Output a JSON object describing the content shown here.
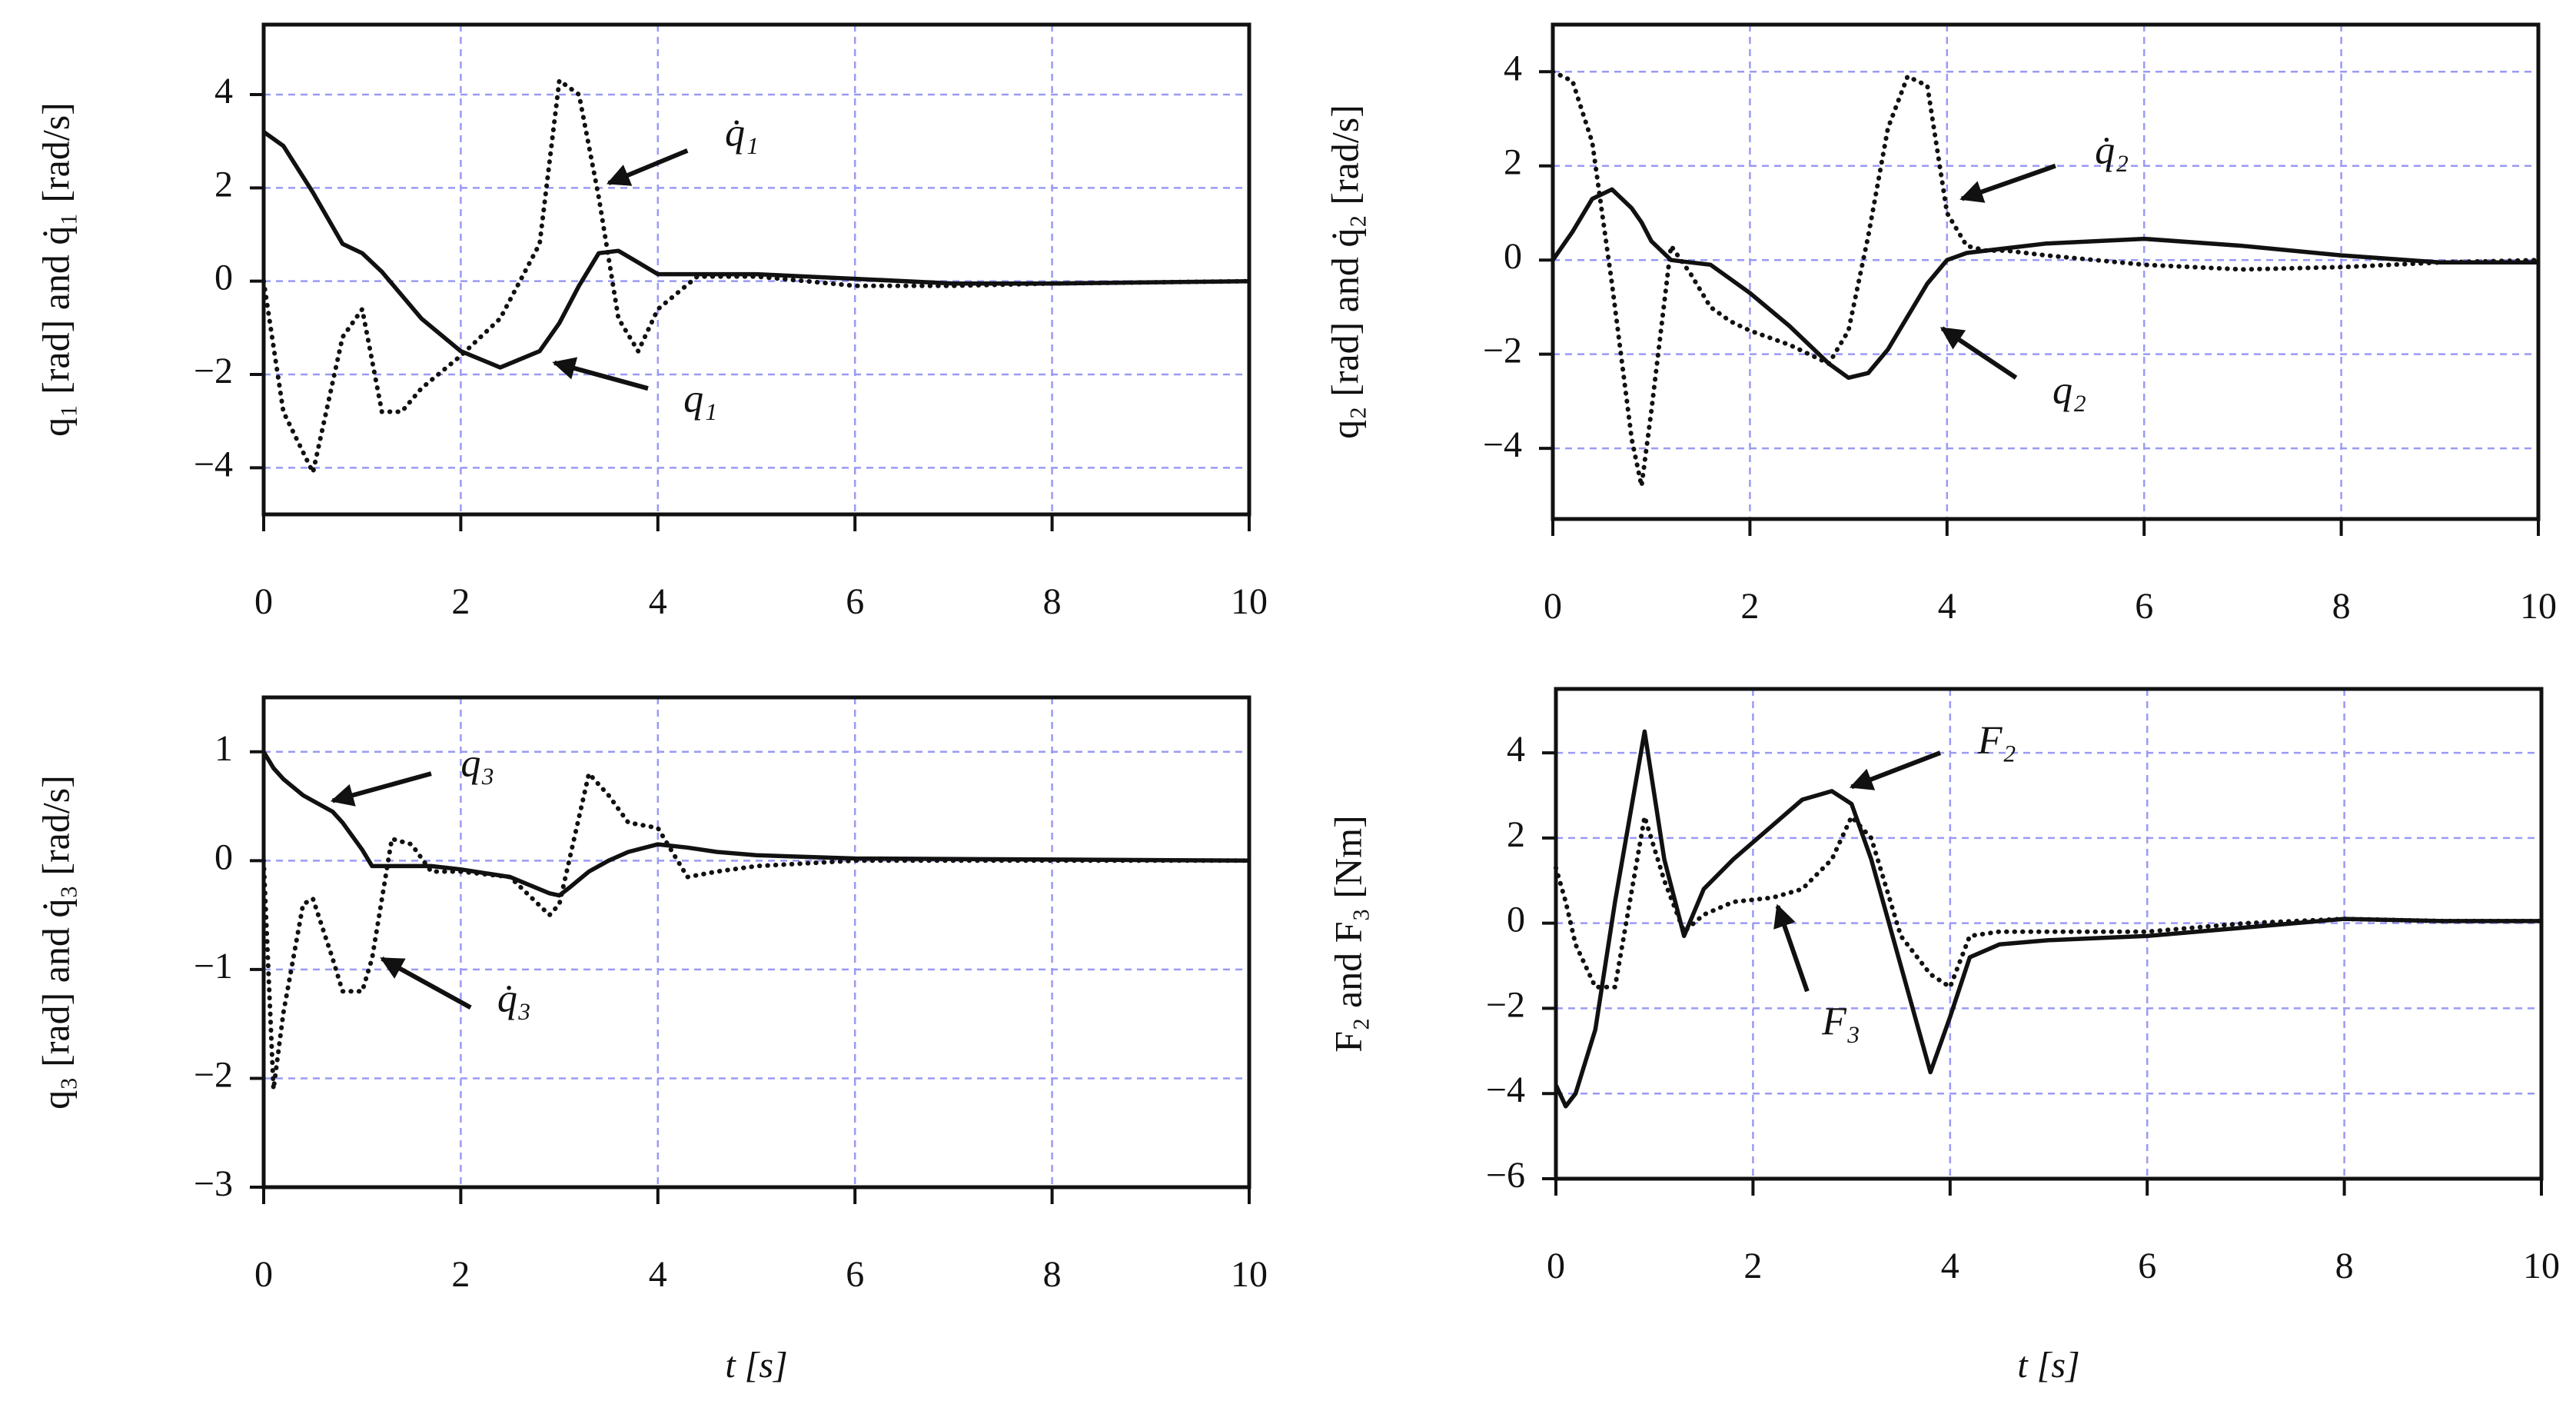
{
  "chart_data": [
    {
      "type": "line",
      "ylabel": "q₁ [rad] and q̇₁ [rad/s]",
      "x": [
        0,
        0.2,
        0.5,
        0.8,
        1,
        1.2,
        1.4,
        1.6,
        2,
        2.4,
        2.8,
        3,
        3.2,
        3.4,
        3.6,
        3.8,
        4,
        4.4,
        5,
        6,
        7,
        8,
        10
      ],
      "series": [
        {
          "name": "q₁",
          "color": "#111111",
          "style": "solid",
          "values": [
            3.2,
            2.9,
            1.9,
            0.8,
            0.6,
            0.2,
            -0.3,
            -0.8,
            -1.5,
            -1.85,
            -1.5,
            -0.9,
            -0.1,
            0.6,
            0.65,
            0.4,
            0.15,
            0.15,
            0.15,
            0.05,
            -0.05,
            -0.05,
            0
          ]
        },
        {
          "name": "q̇₁",
          "color": "#111111",
          "style": "dotted",
          "values": [
            0,
            -2.8,
            -4.1,
            -1.2,
            -0.6,
            -2.8,
            -2.8,
            -2.3,
            -1.6,
            -0.8,
            0.8,
            4.3,
            4.0,
            1.8,
            -0.8,
            -1.5,
            -0.6,
            0.1,
            0.1,
            -0.1,
            -0.1,
            -0.05,
            0
          ]
        }
      ],
      "xlim": [
        0,
        10
      ],
      "xticks": [
        0,
        2,
        4,
        6,
        8,
        10
      ],
      "ylim": [
        -5,
        5.5
      ],
      "yticks": [
        {
          "value": -4,
          "label": "−4"
        },
        {
          "value": -2,
          "label": "−2"
        },
        0,
        2,
        4
      ],
      "grid": true,
      "grid_color": "#9a9af5"
    },
    {
      "type": "line",
      "ylabel": "q₂ [rad] and q̇₂ [rad/s]",
      "x": [
        0,
        0.2,
        0.4,
        0.6,
        0.8,
        0.9,
        1,
        1.2,
        1.4,
        1.6,
        1.8,
        2,
        2.4,
        2.8,
        3,
        3.2,
        3.4,
        3.6,
        3.8,
        4,
        4.2,
        4.4,
        4.6,
        5,
        6,
        7,
        8,
        9,
        10
      ],
      "series": [
        {
          "name": "q₂",
          "color": "#111111",
          "style": "solid",
          "values": [
            0,
            0.6,
            1.3,
            1.5,
            1.1,
            0.8,
            0.4,
            0,
            -0.05,
            -0.1,
            -0.4,
            -0.7,
            -1.4,
            -2.2,
            -2.5,
            -2.4,
            -1.9,
            -1.2,
            -0.5,
            0,
            0.15,
            0.2,
            0.25,
            0.35,
            0.45,
            0.3,
            0.1,
            -0.05,
            -0.05
          ]
        },
        {
          "name": "q̇₂",
          "color": "#111111",
          "style": "dotted",
          "values": [
            4,
            3.8,
            2.5,
            -0.5,
            -3.8,
            -4.8,
            -3.2,
            0.3,
            -0.3,
            -1.0,
            -1.3,
            -1.5,
            -1.8,
            -2.2,
            -1.5,
            0.5,
            2.8,
            3.9,
            3.7,
            1.0,
            0.3,
            0.2,
            0.2,
            0.1,
            -0.1,
            -0.2,
            -0.15,
            -0.05,
            0
          ]
        }
      ],
      "xlim": [
        0,
        10
      ],
      "xticks": [
        0,
        2,
        4,
        6,
        8,
        10
      ],
      "ylim": [
        -5.5,
        5
      ],
      "yticks": [
        {
          "value": -4,
          "label": "−4"
        },
        {
          "value": -2,
          "label": "−2"
        },
        0,
        2,
        4
      ],
      "grid": true,
      "grid_color": "#9a9af5"
    },
    {
      "type": "line",
      "ylabel": "q₃ [rad] and q̇₃ [rad/s]",
      "xlabel": "t  [s]",
      "x": [
        0,
        0.1,
        0.2,
        0.4,
        0.5,
        0.7,
        0.8,
        1,
        1.1,
        1.3,
        1.5,
        1.7,
        2,
        2.5,
        2.9,
        3,
        3.1,
        3.3,
        3.5,
        3.7,
        4,
        4.3,
        4.6,
        5,
        6,
        8,
        10
      ],
      "series": [
        {
          "name": "q₃",
          "color": "#111111",
          "style": "solid",
          "values": [
            1,
            0.85,
            0.75,
            0.6,
            0.55,
            0.45,
            0.35,
            0.1,
            -0.05,
            -0.05,
            -0.05,
            -0.05,
            -0.08,
            -0.15,
            -0.3,
            -0.32,
            -0.25,
            -0.1,
            0,
            0.08,
            0.15,
            0.12,
            0.08,
            0.05,
            0.02,
            0.01,
            0
          ]
        },
        {
          "name": "q̇₃",
          "color": "#111111",
          "style": "dotted",
          "values": [
            0,
            -2.1,
            -1.4,
            -0.4,
            -0.35,
            -0.9,
            -1.2,
            -1.2,
            -0.9,
            0.2,
            0.15,
            -0.1,
            -0.1,
            -0.15,
            -0.5,
            -0.4,
            0,
            0.8,
            0.6,
            0.35,
            0.3,
            -0.15,
            -0.1,
            -0.05,
            0,
            0,
            0
          ]
        }
      ],
      "xlim": [
        0,
        10
      ],
      "xticks": [
        0,
        2,
        4,
        6,
        8,
        10
      ],
      "ylim": [
        -3,
        1.5
      ],
      "yticks": [
        {
          "value": -3,
          "label": "−3"
        },
        {
          "value": -2,
          "label": "−2"
        },
        {
          "value": -1,
          "label": "−1"
        },
        0,
        1
      ],
      "grid": true,
      "grid_color": "#9a9af5"
    },
    {
      "type": "line",
      "ylabel": "F₂ and F₃ [Nm]",
      "xlabel": "t  [s]",
      "x": [
        0,
        0.1,
        0.2,
        0.4,
        0.6,
        0.9,
        1.1,
        1.3,
        1.5,
        1.8,
        2.2,
        2.5,
        2.8,
        3,
        3.2,
        3.5,
        3.8,
        4,
        4.2,
        4.5,
        5,
        6,
        7,
        8,
        9,
        10
      ],
      "series": [
        {
          "name": "F₂",
          "color": "#111111",
          "style": "solid",
          "values": [
            -3.8,
            -4.3,
            -4.0,
            -2.5,
            0.5,
            4.5,
            1.5,
            -0.3,
            0.8,
            1.5,
            2.3,
            2.9,
            3.1,
            2.8,
            1.5,
            -1.0,
            -3.5,
            -2.2,
            -0.8,
            -0.5,
            -0.4,
            -0.3,
            -0.1,
            0.1,
            0.05,
            0.05
          ]
        },
        {
          "name": "F₃",
          "color": "#111111",
          "style": "dotted",
          "values": [
            1.3,
            0.5,
            -0.5,
            -1.5,
            -1.5,
            2.5,
            1.0,
            -0.2,
            0.2,
            0.5,
            0.6,
            0.8,
            1.5,
            2.5,
            2.0,
            -0.3,
            -1.2,
            -1.5,
            -0.3,
            -0.2,
            -0.2,
            -0.2,
            0,
            0.1,
            0.05,
            0.05
          ]
        }
      ],
      "xlim": [
        0,
        10
      ],
      "xticks": [
        0,
        2,
        4,
        6,
        8,
        10
      ],
      "ylim": [
        -6,
        5.5
      ],
      "yticks": [
        {
          "value": -6,
          "label": "−6"
        },
        {
          "value": -4,
          "label": "−4"
        },
        {
          "value": -2,
          "label": "−2"
        },
        0,
        2,
        4
      ],
      "grid": true,
      "grid_color": "#9a9af5"
    }
  ]
}
